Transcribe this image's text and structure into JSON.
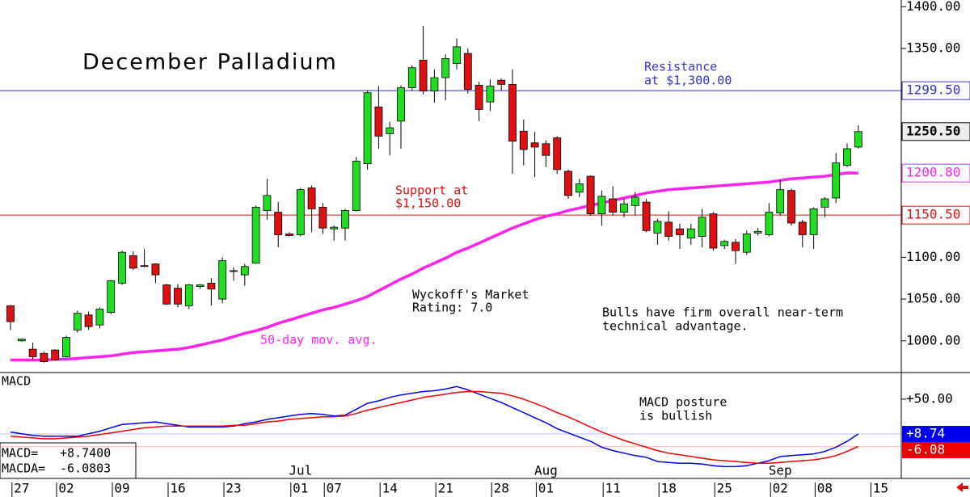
{
  "chart_data": {
    "type": "candlestick",
    "title": "December Palladium",
    "categories": [
      null,
      "27",
      null,
      null,
      null,
      "02",
      null,
      null,
      null,
      null,
      "09",
      null,
      null,
      null,
      null,
      "16",
      null,
      null,
      null,
      null,
      "23",
      null,
      null,
      null,
      null,
      null,
      "01",
      null,
      null,
      "07",
      null,
      null,
      null,
      null,
      "14",
      null,
      null,
      null,
      null,
      "21",
      null,
      null,
      null,
      null,
      "28",
      null,
      null,
      null,
      "01",
      null,
      null,
      null,
      null,
      null,
      "11",
      null,
      null,
      null,
      null,
      "18",
      null,
      null,
      null,
      null,
      "25",
      null,
      null,
      null,
      null,
      "02",
      null,
      null,
      null,
      "08",
      null,
      null,
      null,
      null,
      "15"
    ],
    "months": [
      null,
      null,
      null,
      null,
      null,
      null,
      null,
      null,
      null,
      null,
      null,
      null,
      null,
      null,
      null,
      null,
      null,
      null,
      null,
      null,
      null,
      null,
      null,
      null,
      null,
      null,
      "Jul",
      null,
      null,
      null,
      null,
      null,
      null,
      null,
      null,
      null,
      null,
      null,
      null,
      null,
      null,
      null,
      null,
      null,
      null,
      null,
      null,
      null,
      "Aug",
      null,
      null,
      null,
      null,
      null,
      null,
      null,
      null,
      null,
      null,
      null,
      null,
      null,
      null,
      null,
      null,
      null,
      null,
      null,
      null,
      "Sep",
      null,
      null,
      null,
      null,
      null,
      null,
      null,
      null,
      null
    ],
    "open": [
      1042,
      1000,
      990,
      985,
      989,
      981,
      1013,
      1031,
      1019,
      1034,
      1069,
      1102,
      1090,
      1092,
      1067,
      1063,
      1042,
      1065,
      1069,
      1050,
      1083,
      1079,
      1093,
      1156,
      1154,
      1128,
      1127,
      1183,
      1160,
      1134,
      1135,
      1156,
      1212,
      1280,
      1248,
      1263,
      1303,
      1336,
      1299,
      1315,
      1332,
      1344,
      1306,
      1286,
      1312,
      1307,
      1251,
      1237,
      1236,
      1243,
      1203,
      1178,
      1197,
      1152,
      1170,
      1154,
      1162,
      1166,
      1129,
      1142,
      1134,
      1123,
      1125,
      1152,
      1114,
      1118,
      1106,
      1129,
      1127,
      1153,
      1180,
      1142,
      1127,
      1160,
      1171,
      1210,
      1232,
      null,
      null
    ],
    "high": [
      1043,
      1003,
      998,
      987,
      990,
      1006,
      1036,
      1035,
      1040,
      1073,
      1108,
      1107,
      1110,
      1093,
      1068,
      1068,
      1068,
      1068,
      1075,
      1100,
      1088,
      1092,
      1162,
      1194,
      1166,
      1130,
      1183,
      1186,
      1165,
      1138,
      1158,
      1220,
      1300,
      1305,
      1262,
      1306,
      1330,
      1377,
      1325,
      1343,
      1362,
      1350,
      1310,
      1313,
      1314,
      1325,
      1265,
      1250,
      1240,
      1245,
      1205,
      1194,
      1198,
      1180,
      1185,
      1170,
      1178,
      1170,
      1146,
      1155,
      1140,
      1140,
      1158,
      1154,
      1121,
      1122,
      1132,
      1135,
      1165,
      1193,
      1182,
      1145,
      1160,
      1172,
      1225,
      1236,
      1258,
      null,
      null
    ],
    "low": [
      1013,
      999,
      977,
      974,
      976,
      980,
      1010,
      1013,
      1015,
      1032,
      1067,
      1085,
      1088,
      1069,
      1043,
      1040,
      1038,
      1062,
      1042,
      1045,
      1072,
      1066,
      1092,
      1145,
      1112,
      1125,
      1125,
      1130,
      1128,
      1120,
      1120,
      1155,
      1205,
      1230,
      1222,
      1230,
      1300,
      1295,
      1285,
      1288,
      1325,
      1296,
      1263,
      1275,
      1300,
      1200,
      1210,
      1196,
      1208,
      1200,
      1170,
      1172,
      1150,
      1138,
      1150,
      1148,
      1150,
      1130,
      1115,
      1120,
      1110,
      1115,
      1112,
      1108,
      1110,
      1092,
      1103,
      1126,
      1125,
      1150,
      1138,
      1112,
      1110,
      1148,
      1165,
      1208,
      1230,
      null,
      null
    ],
    "close": [
      1023,
      1002,
      981,
      975,
      977,
      1004,
      1033,
      1017,
      1038,
      1072,
      1106,
      1087,
      1089,
      1079,
      1044,
      1044,
      1067,
      1067,
      1062,
      1096,
      1084,
      1089,
      1160,
      1174,
      1127,
      1126,
      1181,
      1158,
      1135,
      1136,
      1156,
      1215,
      1297,
      1245,
      1255,
      1303,
      1327,
      1299,
      1315,
      1338,
      1352,
      1301,
      1277,
      1305,
      1307,
      1239,
      1229,
      1232,
      1222,
      1205,
      1174,
      1188,
      1152,
      1173,
      1154,
      1164,
      1172,
      1132,
      1143,
      1125,
      1127,
      1134,
      1148,
      1111,
      1119,
      1108,
      1128,
      1131,
      1154,
      1181,
      1141,
      1127,
      1158,
      1170,
      1213,
      1230,
      1250.5,
      null,
      null
    ],
    "up_color": "#22dd22",
    "down_color": "#dd1111",
    "last_close_label": "1250.50",
    "ylim": [
      963,
      1408
    ],
    "yticks": [
      {
        "value": 1000,
        "label": "1000.00"
      },
      {
        "value": 1050,
        "label": "1050.00"
      },
      {
        "value": 1100,
        "label": "1100.00"
      },
      {
        "value": 1150,
        "label": "1150.00"
      },
      {
        "value": 1200,
        "label": "1200.00"
      },
      {
        "value": 1250,
        "label": "1250.00"
      },
      {
        "value": 1300,
        "label": "1300.00"
      },
      {
        "value": 1350,
        "label": "1350.00"
      },
      {
        "value": 1400,
        "label": "1400.00"
      }
    ],
    "moving_average": {
      "name": "50-day mov. avg.",
      "color": "#ff22ee",
      "last_label": "1200.80",
      "values": [
        977,
        977,
        977,
        977,
        978,
        978,
        979,
        980,
        981,
        982,
        984,
        986,
        987,
        988,
        989,
        990,
        992,
        995,
        998,
        1001,
        1005,
        1009,
        1012,
        1016,
        1021,
        1025,
        1029,
        1033,
        1037,
        1040,
        1044,
        1048,
        1053,
        1060,
        1067,
        1074,
        1080,
        1087,
        1093,
        1099,
        1106,
        1111,
        1117,
        1123,
        1129,
        1135,
        1140,
        1145,
        1149,
        1152,
        1156,
        1159,
        1162,
        1165,
        1168,
        1171,
        1174,
        1177,
        1179,
        1181,
        1182,
        1183,
        1184,
        1185,
        1186,
        1187,
        1188,
        1189,
        1190,
        1192,
        1194,
        1195,
        1196,
        1197,
        1199,
        1201,
        1200.8,
        null,
        null
      ]
    },
    "levels": [
      {
        "value": 1299.5,
        "label": "1299.50",
        "color": "#3333cc",
        "text": [
          "Resistance",
          "at $1,300.00"
        ]
      },
      {
        "value": 1150.5,
        "label": "1150.50",
        "color": "#dd1111",
        "text": [
          "Support at",
          "$1,150.00"
        ]
      }
    ],
    "annotations": [
      [
        "Wyckoff's Market",
        "Rating: 7.0"
      ],
      [
        "Bulls have firm overall near-term",
        "technical advantage."
      ]
    ],
    "macd": {
      "title": "MACD",
      "ylim": [
        -44,
        80.6
      ],
      "yticks": [
        {
          "value": 50,
          "label": "+50.00"
        }
      ],
      "annotation": [
        "MACD posture",
        "is bullish"
      ],
      "series": [
        {
          "name": "MACD",
          "legend_label": "MACD=",
          "legend_value": "+8.7400",
          "last_label": "+8.74",
          "color": "#0000ee",
          "values": [
            11,
            9,
            7,
            6,
            6,
            6,
            6,
            9,
            12,
            16,
            20,
            21,
            22,
            23,
            21,
            19,
            17,
            17,
            17,
            17,
            18,
            21,
            23,
            26,
            28,
            30,
            32,
            33,
            32,
            30,
            31,
            38,
            45,
            48,
            52,
            55,
            57,
            59,
            60,
            62,
            65,
            61,
            56,
            51,
            46,
            40,
            34,
            28,
            22,
            15,
            10,
            5,
            0,
            -7,
            -11,
            -14,
            -17,
            -19,
            -24,
            -25,
            -26,
            -26,
            -27,
            -29,
            -30,
            -30,
            -29,
            -26,
            -23,
            -18,
            -17,
            -16,
            -15,
            -12,
            -7,
            0,
            8.74,
            null,
            null
          ]
        },
        {
          "name": "MACDA",
          "legend_label": "MACDA=",
          "legend_value": "-6.0803",
          "last_label": "-6.08",
          "color": "#ee0000",
          "values": [
            6,
            5,
            4,
            3,
            3,
            4,
            5,
            6,
            8,
            10,
            12,
            14,
            16,
            17,
            18,
            18,
            18,
            18,
            18,
            18,
            19,
            19,
            21,
            23,
            24,
            26,
            27,
            28,
            29,
            29,
            30,
            33,
            37,
            40,
            43,
            46,
            49,
            52,
            54,
            56,
            58,
            59,
            59,
            58,
            57,
            54,
            50,
            45,
            40,
            34,
            29,
            23,
            17,
            11,
            6,
            1,
            -3,
            -7,
            -11,
            -14,
            -16,
            -18,
            -20,
            -22,
            -23,
            -24,
            -25,
            -26,
            -26,
            -25,
            -24,
            -23,
            -22,
            -20,
            -17,
            -12,
            -6.0803,
            null,
            null
          ]
        }
      ]
    }
  }
}
